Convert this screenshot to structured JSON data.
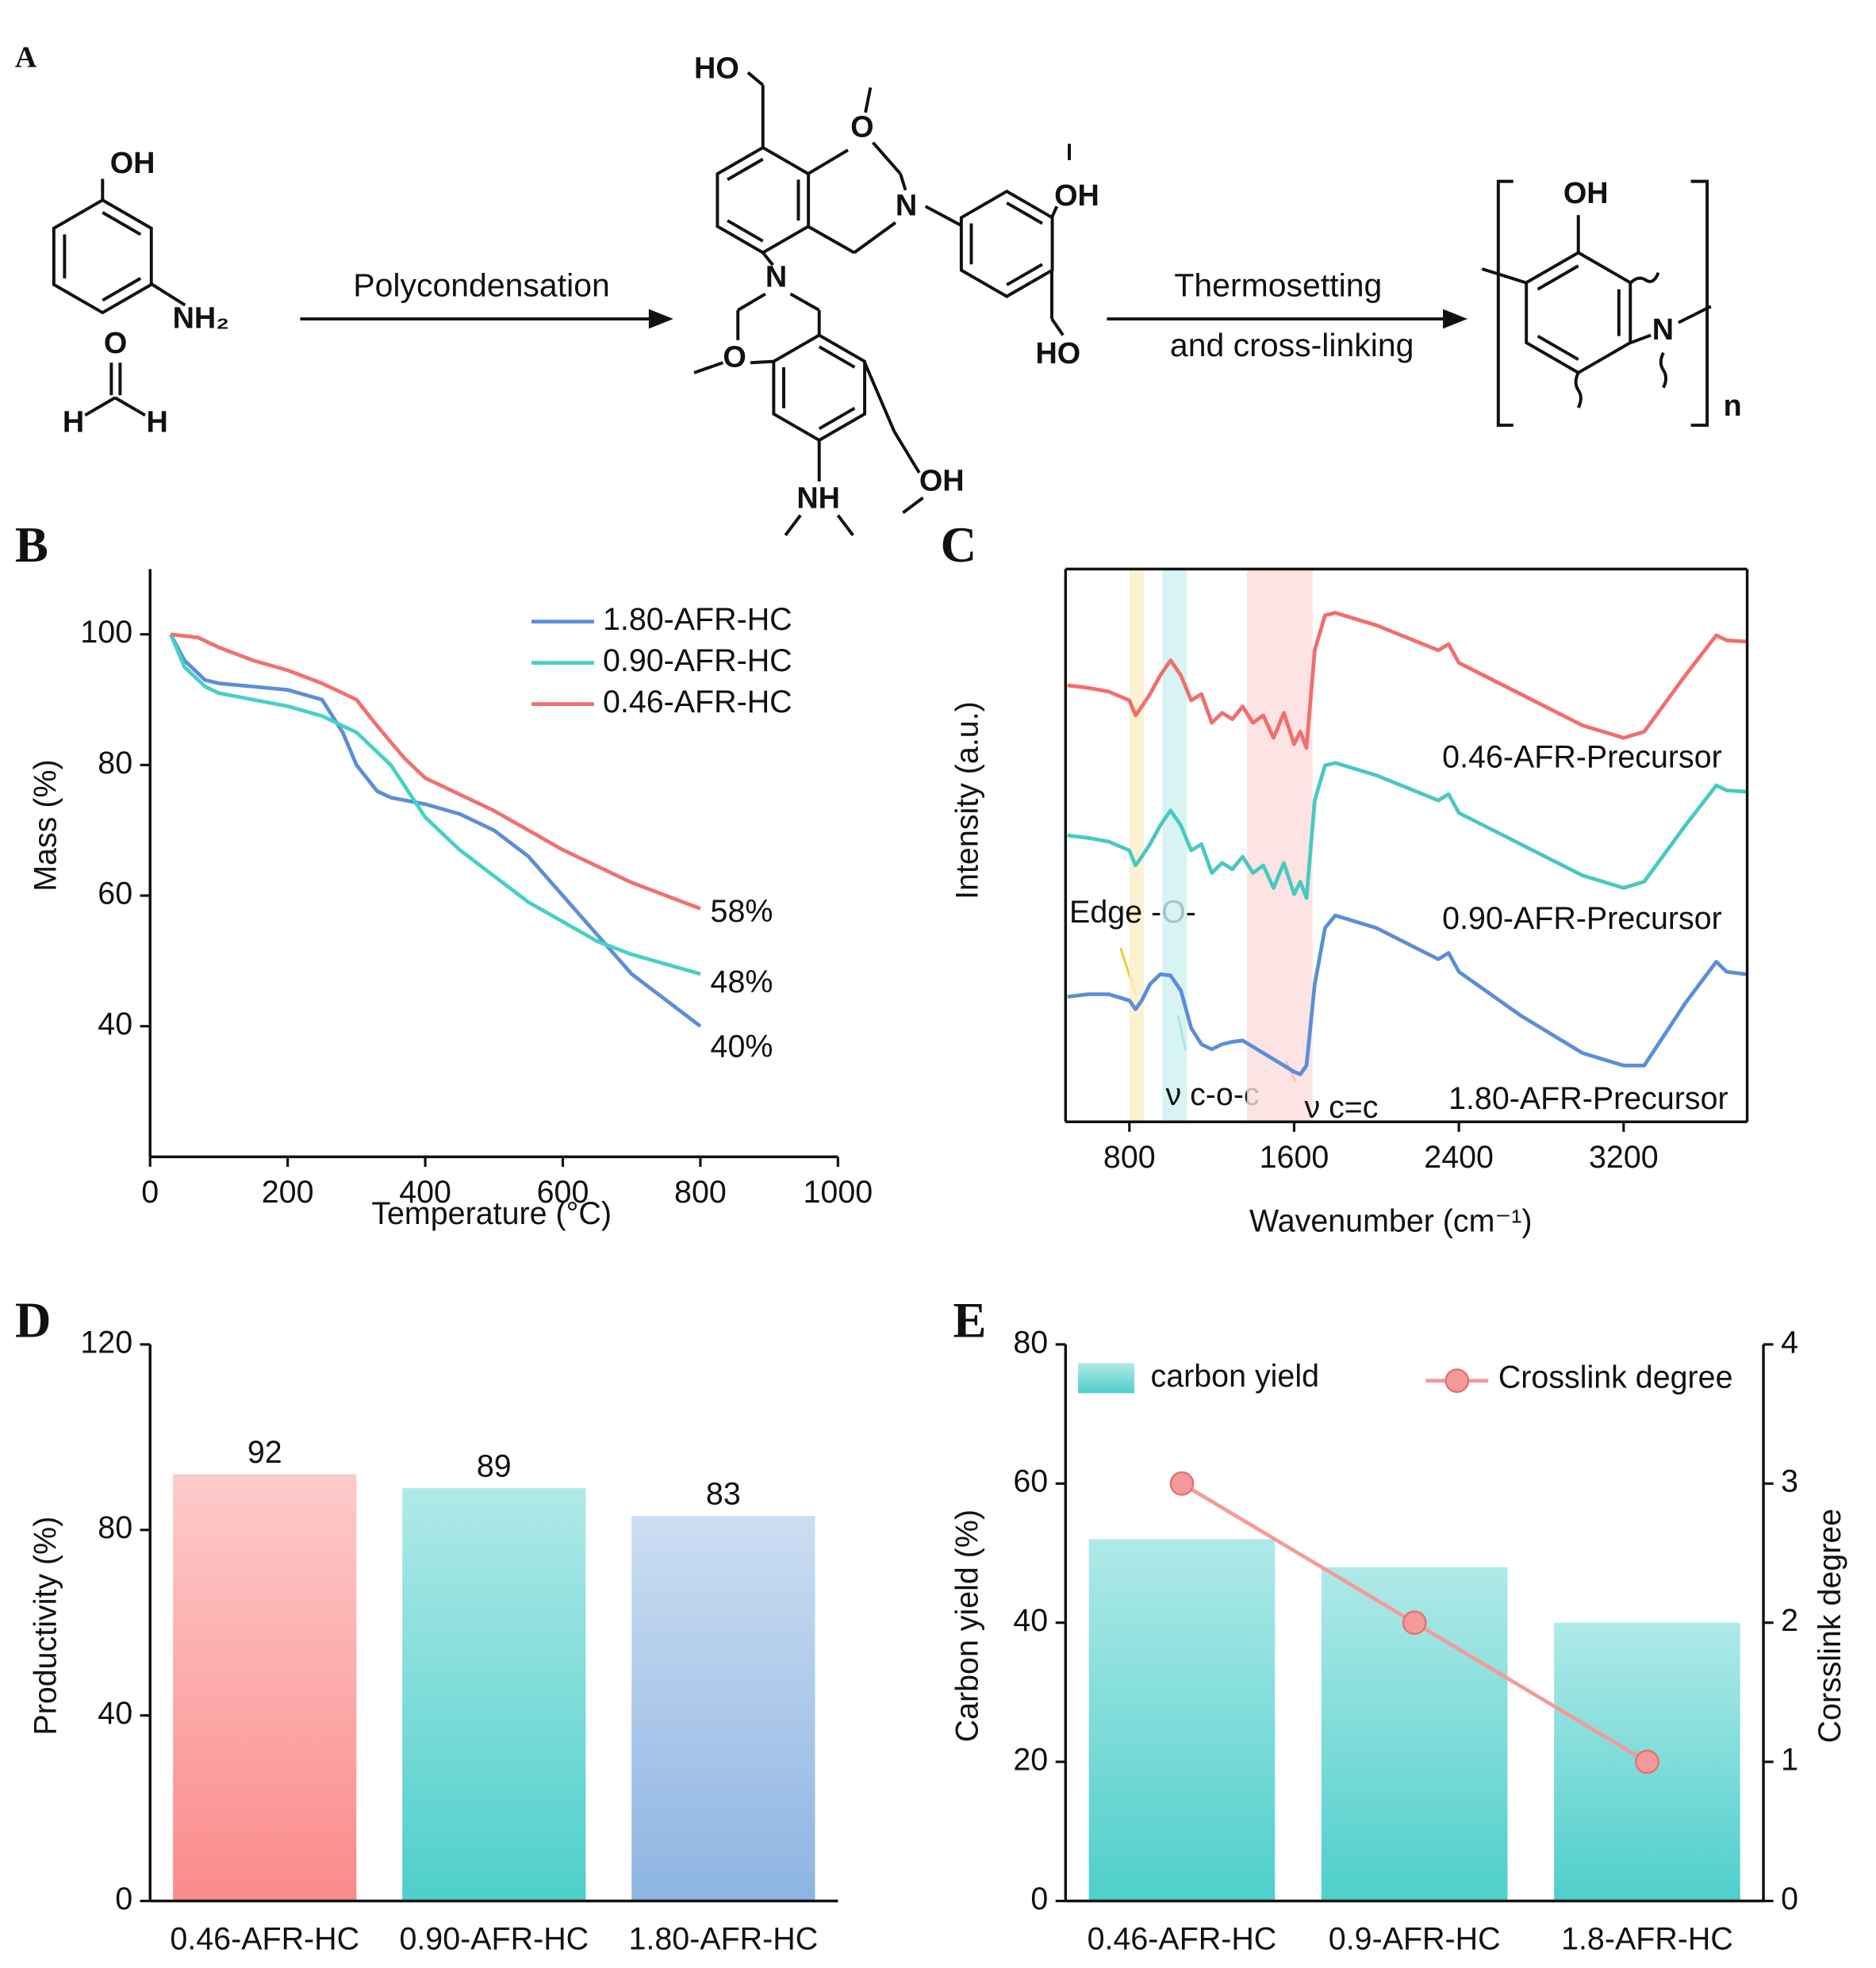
{
  "scheme": {
    "label": "A",
    "reagents": [
      "OH",
      "NH₂",
      "O",
      "H",
      "H"
    ],
    "steps": [
      "Polycondensation",
      "Thermosetting",
      "and cross-linking"
    ],
    "intermediate_groups": [
      "HO",
      "O",
      "N",
      "OH",
      "HO",
      "N",
      "O",
      "OH",
      "NH"
    ],
    "product_groups": [
      "OH",
      "N",
      "n"
    ]
  },
  "chart_data": [
    {
      "label": "B",
      "type": "line",
      "xlabel": "Temperature (°C)",
      "ylabel": "Mass (%)",
      "xlim": [
        0,
        1000
      ],
      "xticks": [
        0,
        200,
        400,
        600,
        800,
        1000
      ],
      "ylim": [
        20,
        110
      ],
      "yticks": [
        40,
        60,
        80,
        100
      ],
      "legend": "upper right",
      "series": [
        {
          "name": "1.80-AFR-HC",
          "color": "#5b8fd6",
          "end_label": "40%",
          "x": [
            30,
            50,
            80,
            100,
            150,
            200,
            250,
            280,
            300,
            330,
            350,
            400,
            450,
            500,
            550,
            600,
            650,
            700,
            750,
            800
          ],
          "values": [
            100,
            96,
            93,
            92.5,
            92,
            91.5,
            90,
            85,
            80,
            76,
            75,
            74,
            72.5,
            70,
            66,
            60,
            54,
            48,
            44,
            40
          ]
        },
        {
          "name": "0.90-AFR-HC",
          "color": "#45d1c6",
          "end_label": "48%",
          "x": [
            30,
            50,
            80,
            100,
            150,
            200,
            250,
            300,
            350,
            400,
            450,
            500,
            550,
            600,
            650,
            700,
            750,
            800
          ],
          "values": [
            100,
            95,
            92,
            91,
            90,
            89,
            87.5,
            85,
            80,
            72,
            67,
            63,
            59,
            56,
            53,
            51,
            49.5,
            48
          ]
        },
        {
          "name": "0.46-AFR-HC",
          "color": "#f0716f",
          "end_label": "58%",
          "x": [
            30,
            70,
            100,
            150,
            200,
            250,
            300,
            330,
            370,
            400,
            450,
            500,
            550,
            600,
            650,
            700,
            750,
            800
          ],
          "values": [
            100,
            99.5,
            98,
            96,
            94.5,
            92.5,
            90,
            86,
            81,
            78,
            75.5,
            73,
            70,
            67,
            64.5,
            62,
            60,
            58
          ]
        }
      ]
    },
    {
      "label": "C",
      "type": "line",
      "xlabel": "Wavenumber (cm⁻¹)",
      "ylabel": "Intensity (a.u.)",
      "xlim": [
        490,
        3800
      ],
      "xticks": [
        800,
        1600,
        2400,
        3200
      ],
      "ylim": [
        0,
        442
      ],
      "x": [
        500,
        600,
        700,
        800,
        830,
        860,
        900,
        950,
        1000,
        1050,
        1100,
        1150,
        1200,
        1250,
        1300,
        1350,
        1400,
        1450,
        1500,
        1550,
        1600,
        1630,
        1660,
        1700,
        1750,
        1800,
        2000,
        2300,
        2350,
        2400,
        2700,
        3000,
        3200,
        3300,
        3500,
        3650,
        3700,
        3794
      ],
      "series": [
        {
          "name": "0.46-AFR-Precursor",
          "color": "#f26d6d",
          "values": [
            349,
            347,
            344,
            337,
            325,
            332,
            342,
            357,
            369,
            357,
            337,
            342,
            319,
            327,
            322,
            332,
            319,
            325,
            307,
            327,
            302,
            312,
            299,
            377,
            405,
            407,
            397,
            377,
            382,
            367,
            342,
            317,
            307,
            312,
            357,
            389,
            385,
            384
          ]
        },
        {
          "name": "0.90-AFR-Precursor",
          "color": "#48c9c0",
          "values": [
            229,
            227,
            224,
            217,
            205,
            212,
            222,
            237,
            249,
            237,
            217,
            222,
            199,
            207,
            202,
            212,
            199,
            205,
            187,
            207,
            182,
            192,
            179,
            257,
            285,
            287,
            277,
            257,
            262,
            247,
            222,
            197,
            187,
            192,
            237,
            269,
            265,
            264
          ]
        },
        {
          "name": "1.80-AFR-Precursor",
          "color": "#5a8ed8",
          "values": [
            100,
            102,
            102,
            97,
            90,
            97,
            110,
            118,
            117,
            105,
            75,
            62,
            58,
            62,
            64,
            65,
            60,
            55,
            50,
            45,
            40,
            38,
            45,
            110,
            155,
            165,
            155,
            130,
            135,
            120,
            85,
            55,
            45,
            45,
            95,
            128,
            120,
            118
          ]
        }
      ],
      "bands": [
        {
          "range": [
            800,
            870
          ],
          "color": "#fbeec6",
          "label": "Edge -O-",
          "label_color": "#f0cf3a"
        },
        {
          "range": [
            960,
            1080
          ],
          "color": "#cdf1ef",
          "label": "ν c-o-c",
          "label_color": "#36bdb4"
        },
        {
          "range": [
            1370,
            1690
          ],
          "color": "#fddcdc",
          "label": "ν c=c",
          "label_color": "#e85a5a"
        }
      ]
    },
    {
      "label": "D",
      "type": "bar",
      "ylabel": "Productivity (%)",
      "categories": [
        "0.46-AFR-HC",
        "0.90-AFR-HC",
        "1.80-AFR-HC"
      ],
      "values": [
        92,
        89,
        83
      ],
      "colors": [
        "#fb8a8a",
        "#4ecfcb",
        "#8db4e2"
      ],
      "ylim": [
        0,
        120
      ],
      "yticks": [
        0,
        40,
        80,
        120
      ]
    },
    {
      "label": "E",
      "type": "combo",
      "ylabel": "Carbon yield (%)",
      "y2label": "Corsslink degree",
      "categories": [
        "0.46-AFR-HC",
        "0.9-AFR-HC",
        "1.8-AFR-HC"
      ],
      "ylim": [
        0,
        80
      ],
      "yticks": [
        0,
        20,
        40,
        60,
        80
      ],
      "y2lim": [
        0,
        4
      ],
      "y2ticks": [
        0,
        1,
        2,
        3,
        4
      ],
      "series": [
        {
          "name": "carbon yield",
          "type": "bar",
          "color": "#4ecfcb",
          "values": [
            52,
            48,
            40
          ]
        },
        {
          "name": "Crosslink degree",
          "type": "line",
          "axis": "y2",
          "color": "#f49a9a",
          "values": [
            3,
            2,
            1
          ]
        }
      ]
    }
  ]
}
